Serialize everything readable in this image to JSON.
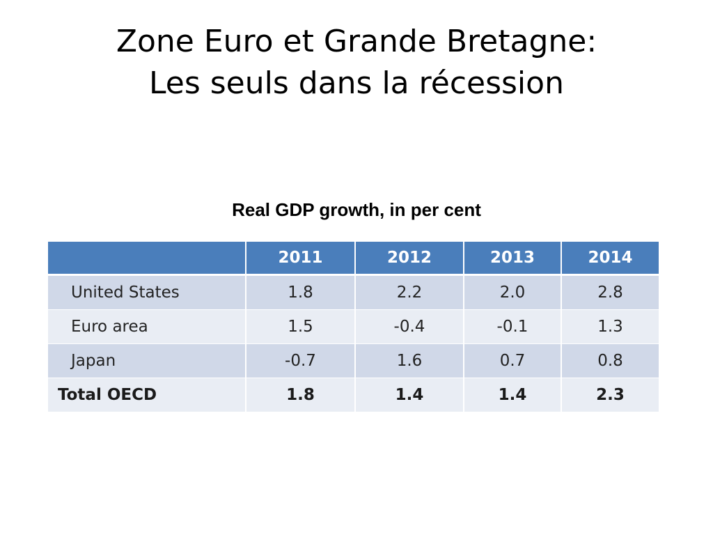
{
  "slide": {
    "title_line1": "Zone Euro et Grande Bretagne:",
    "title_line2": "Les seuls dans la récession"
  },
  "chart_data": {
    "type": "table",
    "title": "Real GDP growth, in per cent",
    "columns": [
      "",
      "2011",
      "2012",
      "2013",
      "2014"
    ],
    "rows": [
      {
        "label": "United States",
        "values": [
          "1.8",
          "2.2",
          "2.0",
          "2.8"
        ]
      },
      {
        "label": "Euro area",
        "values": [
          "1.5",
          "-0.4",
          "-0.1",
          "1.3"
        ]
      },
      {
        "label": "Japan",
        "values": [
          "-0.7",
          "1.6",
          "0.7",
          "0.8"
        ]
      },
      {
        "label": "Total OECD",
        "values": [
          "1.8",
          "1.4",
          "1.4",
          "2.3"
        ]
      }
    ],
    "colors": {
      "header_bg": "#4a7ebb",
      "header_text": "#ffffff",
      "row_band_dark": "#d0d8e8",
      "row_band_light": "#e9edf4"
    }
  }
}
